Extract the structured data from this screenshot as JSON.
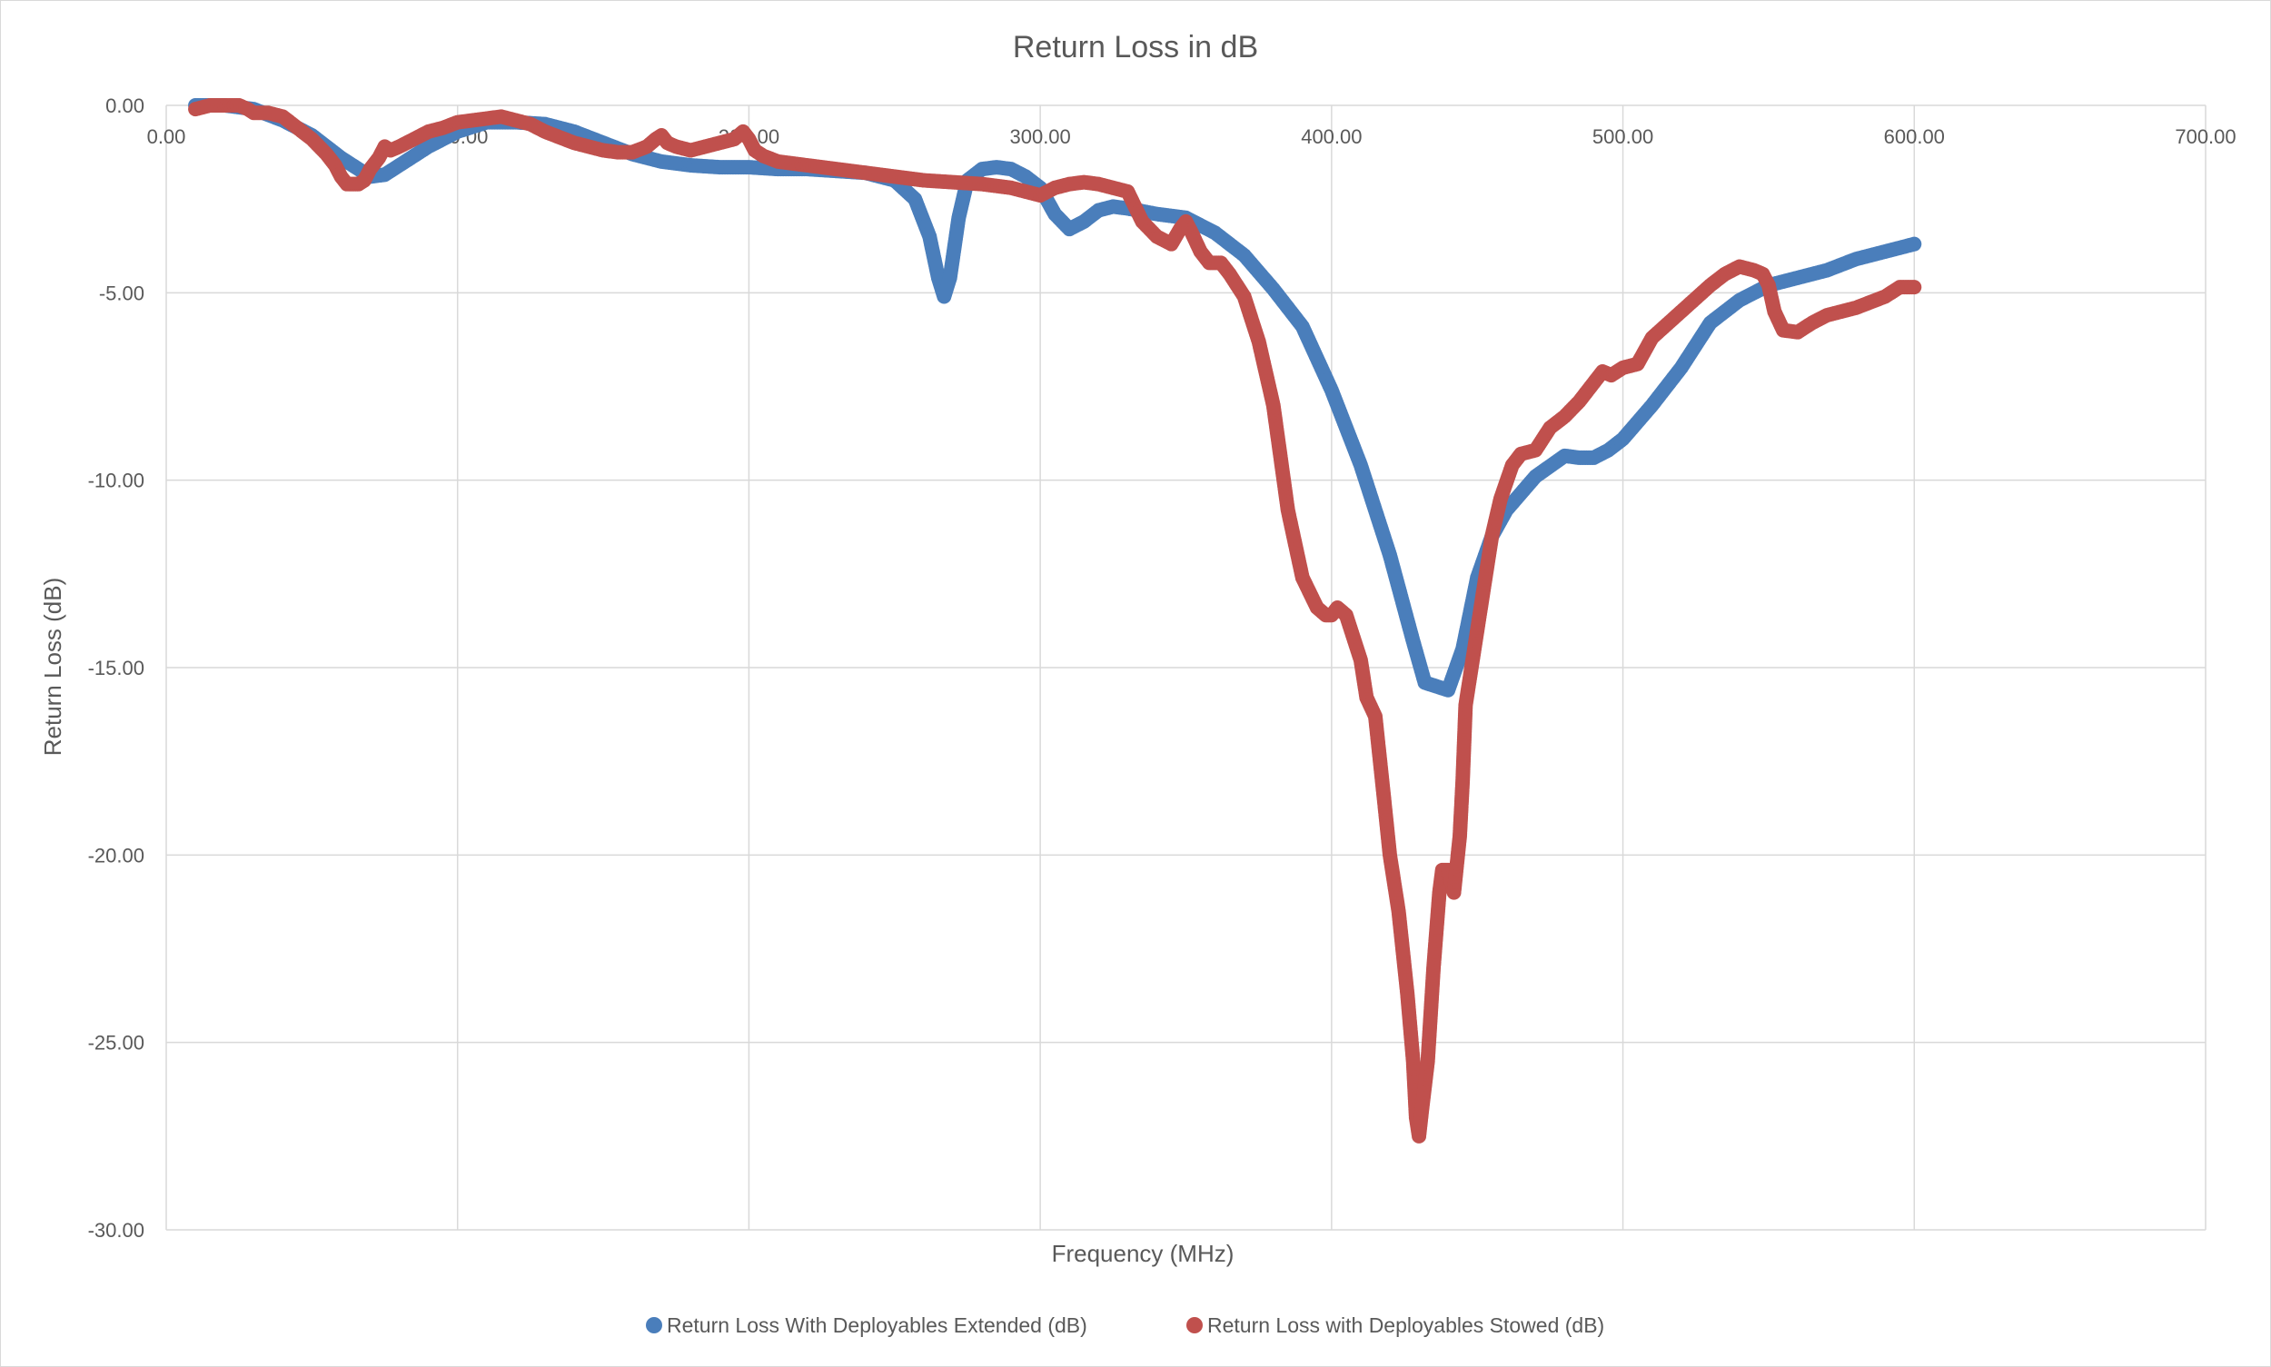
{
  "chart_data": {
    "type": "scatter",
    "title": "Return Loss in dB",
    "xlabel": "Frequency (MHz)",
    "ylabel": "Return Loss (dB)",
    "xlim": [
      0,
      700
    ],
    "ylim": [
      -30,
      0
    ],
    "x_ticks": [
      "0.00",
      "100.00",
      "200.00",
      "300.00",
      "400.00",
      "500.00",
      "600.00",
      "700.00"
    ],
    "y_ticks": [
      "0.00",
      "-5.00",
      "-10.00",
      "-15.00",
      "-20.00",
      "-25.00",
      "-30.00"
    ],
    "grid": true,
    "legend_position": "bottom",
    "series": [
      {
        "name": "Return Loss With Deployables Extended (dB)",
        "color": "#4a7ebb",
        "points": [
          [
            10,
            0.0
          ],
          [
            20,
            0.0
          ],
          [
            30,
            -0.1
          ],
          [
            40,
            -0.4
          ],
          [
            50,
            -0.8
          ],
          [
            60,
            -1.4
          ],
          [
            70,
            -1.9
          ],
          [
            75,
            -1.85
          ],
          [
            80,
            -1.6
          ],
          [
            90,
            -1.1
          ],
          [
            100,
            -0.7
          ],
          [
            110,
            -0.45
          ],
          [
            120,
            -0.45
          ],
          [
            130,
            -0.5
          ],
          [
            140,
            -0.7
          ],
          [
            150,
            -1.0
          ],
          [
            160,
            -1.3
          ],
          [
            170,
            -1.5
          ],
          [
            180,
            -1.6
          ],
          [
            190,
            -1.65
          ],
          [
            200,
            -1.65
          ],
          [
            210,
            -1.7
          ],
          [
            220,
            -1.7
          ],
          [
            230,
            -1.75
          ],
          [
            240,
            -1.8
          ],
          [
            250,
            -2.0
          ],
          [
            257,
            -2.5
          ],
          [
            262,
            -3.5
          ],
          [
            265,
            -4.6
          ],
          [
            267,
            -5.1
          ],
          [
            269,
            -4.6
          ],
          [
            272,
            -3.0
          ],
          [
            275,
            -2.0
          ],
          [
            280,
            -1.7
          ],
          [
            285,
            -1.65
          ],
          [
            290,
            -1.7
          ],
          [
            295,
            -1.9
          ],
          [
            300,
            -2.2
          ],
          [
            305,
            -2.9
          ],
          [
            310,
            -3.3
          ],
          [
            315,
            -3.1
          ],
          [
            320,
            -2.8
          ],
          [
            325,
            -2.7
          ],
          [
            330,
            -2.75
          ],
          [
            340,
            -2.9
          ],
          [
            350,
            -3.0
          ],
          [
            360,
            -3.4
          ],
          [
            370,
            -4.0
          ],
          [
            380,
            -4.9
          ],
          [
            390,
            -5.9
          ],
          [
            400,
            -7.6
          ],
          [
            410,
            -9.6
          ],
          [
            420,
            -12.0
          ],
          [
            428,
            -14.3
          ],
          [
            432,
            -15.4
          ],
          [
            436,
            -15.5
          ],
          [
            440,
            -15.6
          ],
          [
            445,
            -14.5
          ],
          [
            450,
            -12.6
          ],
          [
            455,
            -11.5
          ],
          [
            460,
            -10.8
          ],
          [
            470,
            -9.9
          ],
          [
            480,
            -9.35
          ],
          [
            485,
            -9.4
          ],
          [
            490,
            -9.4
          ],
          [
            495,
            -9.2
          ],
          [
            500,
            -8.9
          ],
          [
            510,
            -8.0
          ],
          [
            515,
            -7.5
          ],
          [
            520,
            -7.0
          ],
          [
            525,
            -6.4
          ],
          [
            530,
            -5.8
          ],
          [
            540,
            -5.2
          ],
          [
            550,
            -4.8
          ],
          [
            560,
            -4.6
          ],
          [
            570,
            -4.4
          ],
          [
            580,
            -4.1
          ],
          [
            590,
            -3.9
          ],
          [
            600,
            -3.7
          ]
        ]
      },
      {
        "name": "Return Loss with Deployables Stowed (dB)",
        "color": "#c0504d",
        "points": [
          [
            10,
            -0.1
          ],
          [
            15,
            0.0
          ],
          [
            20,
            0.0
          ],
          [
            25,
            0.0
          ],
          [
            28,
            -0.1
          ],
          [
            30,
            -0.2
          ],
          [
            35,
            -0.2
          ],
          [
            40,
            -0.3
          ],
          [
            45,
            -0.6
          ],
          [
            50,
            -0.9
          ],
          [
            55,
            -1.3
          ],
          [
            58,
            -1.6
          ],
          [
            60,
            -1.9
          ],
          [
            62,
            -2.1
          ],
          [
            64,
            -2.1
          ],
          [
            66,
            -2.1
          ],
          [
            68,
            -2.0
          ],
          [
            70,
            -1.7
          ],
          [
            73,
            -1.4
          ],
          [
            75,
            -1.1
          ],
          [
            77,
            -1.2
          ],
          [
            80,
            -1.1
          ],
          [
            85,
            -0.9
          ],
          [
            90,
            -0.7
          ],
          [
            95,
            -0.6
          ],
          [
            100,
            -0.45
          ],
          [
            110,
            -0.35
          ],
          [
            115,
            -0.3
          ],
          [
            120,
            -0.4
          ],
          [
            125,
            -0.5
          ],
          [
            130,
            -0.7
          ],
          [
            140,
            -1.0
          ],
          [
            150,
            -1.2
          ],
          [
            155,
            -1.25
          ],
          [
            160,
            -1.25
          ],
          [
            165,
            -1.1
          ],
          [
            168,
            -0.9
          ],
          [
            170,
            -0.8
          ],
          [
            172,
            -1.0
          ],
          [
            175,
            -1.1
          ],
          [
            180,
            -1.2
          ],
          [
            185,
            -1.1
          ],
          [
            190,
            -1.0
          ],
          [
            195,
            -0.9
          ],
          [
            198,
            -0.7
          ],
          [
            200,
            -0.9
          ],
          [
            202,
            -1.2
          ],
          [
            205,
            -1.35
          ],
          [
            210,
            -1.5
          ],
          [
            220,
            -1.6
          ],
          [
            230,
            -1.7
          ],
          [
            240,
            -1.8
          ],
          [
            250,
            -1.9
          ],
          [
            260,
            -2.0
          ],
          [
            270,
            -2.05
          ],
          [
            280,
            -2.1
          ],
          [
            290,
            -2.2
          ],
          [
            295,
            -2.3
          ],
          [
            300,
            -2.4
          ],
          [
            305,
            -2.2
          ],
          [
            310,
            -2.1
          ],
          [
            315,
            -2.05
          ],
          [
            320,
            -2.1
          ],
          [
            325,
            -2.2
          ],
          [
            330,
            -2.3
          ],
          [
            335,
            -3.1
          ],
          [
            340,
            -3.5
          ],
          [
            345,
            -3.7
          ],
          [
            348,
            -3.3
          ],
          [
            350,
            -3.1
          ],
          [
            352,
            -3.4
          ],
          [
            355,
            -3.9
          ],
          [
            358,
            -4.2
          ],
          [
            362,
            -4.2
          ],
          [
            365,
            -4.5
          ],
          [
            370,
            -5.1
          ],
          [
            375,
            -6.3
          ],
          [
            380,
            -8.0
          ],
          [
            385,
            -10.8
          ],
          [
            390,
            -12.6
          ],
          [
            395,
            -13.4
          ],
          [
            398,
            -13.6
          ],
          [
            400,
            -13.6
          ],
          [
            402,
            -13.4
          ],
          [
            405,
            -13.6
          ],
          [
            410,
            -14.8
          ],
          [
            412,
            -15.8
          ],
          [
            415,
            -16.3
          ],
          [
            418,
            -18.5
          ],
          [
            420,
            -20.0
          ],
          [
            423,
            -21.5
          ],
          [
            426,
            -23.7
          ],
          [
            428,
            -25.5
          ],
          [
            429,
            -27.0
          ],
          [
            430,
            -27.5
          ],
          [
            431,
            -26.8
          ],
          [
            433,
            -25.5
          ],
          [
            435,
            -23.0
          ],
          [
            437,
            -21.0
          ],
          [
            438,
            -20.4
          ],
          [
            440,
            -20.4
          ],
          [
            442,
            -21.0
          ],
          [
            444,
            -19.5
          ],
          [
            445,
            -18.0
          ],
          [
            446,
            -16.0
          ],
          [
            448,
            -15.0
          ],
          [
            450,
            -14.0
          ],
          [
            452,
            -13.0
          ],
          [
            455,
            -11.5
          ],
          [
            458,
            -10.5
          ],
          [
            462,
            -9.6
          ],
          [
            465,
            -9.3
          ],
          [
            470,
            -9.2
          ],
          [
            475,
            -8.6
          ],
          [
            480,
            -8.3
          ],
          [
            485,
            -7.9
          ],
          [
            490,
            -7.4
          ],
          [
            493,
            -7.1
          ],
          [
            496,
            -7.2
          ],
          [
            500,
            -7.0
          ],
          [
            505,
            -6.9
          ],
          [
            510,
            -6.2
          ],
          [
            520,
            -5.5
          ],
          [
            530,
            -4.8
          ],
          [
            535,
            -4.5
          ],
          [
            540,
            -4.3
          ],
          [
            545,
            -4.4
          ],
          [
            548,
            -4.5
          ],
          [
            550,
            -4.8
          ],
          [
            552,
            -5.5
          ],
          [
            555,
            -6.0
          ],
          [
            560,
            -6.05
          ],
          [
            565,
            -5.8
          ],
          [
            570,
            -5.6
          ],
          [
            575,
            -5.5
          ],
          [
            580,
            -5.4
          ],
          [
            585,
            -5.25
          ],
          [
            590,
            -5.1
          ],
          [
            595,
            -4.85
          ],
          [
            600,
            -4.85
          ]
        ]
      }
    ]
  }
}
